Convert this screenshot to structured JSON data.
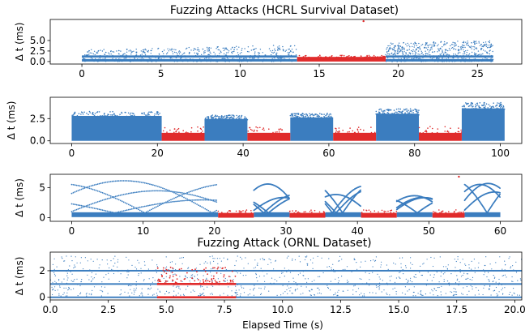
{
  "colors": {
    "normal": "#3b7dbf",
    "attack": "#e02b2b"
  },
  "chart_data": [
    {
      "type": "scatter",
      "title": "Fuzzing Attacks (HCRL Survival Dataset)",
      "xlabel": "",
      "ylabel": "Δ t (ms)",
      "xlim": [
        -2,
        27.8
      ],
      "ylim": [
        -0.6,
        10
      ],
      "xticks": [
        0,
        5,
        10,
        15,
        20,
        25
      ],
      "yticks": [
        0,
        2.5,
        5
      ],
      "attack_intervals": [
        [
          13.6,
          19.2
        ]
      ],
      "normal_profile": {
        "baseline": 0.3,
        "upper_start": 2.8,
        "upper_end": 5.0,
        "band_mid": 1.2
      },
      "attack_level": 1.0,
      "outliers": [
        {
          "x": 17.8,
          "y": 9.6
        }
      ],
      "series": [
        {
          "name": "",
          "color": "normal"
        },
        {
          "name": "",
          "color": "attack"
        }
      ]
    },
    {
      "type": "scatter",
      "title": "",
      "xlabel": "",
      "ylabel": "Δ t (ms)",
      "xlim": [
        -5,
        105
      ],
      "ylim": [
        -0.3,
        4.9
      ],
      "xticks": [
        0,
        20,
        40,
        60,
        80,
        100
      ],
      "yticks": [
        0.0,
        2.5
      ],
      "attack_intervals": [
        [
          21,
          31
        ],
        [
          41,
          51
        ],
        [
          61,
          71
        ],
        [
          81,
          91
        ]
      ],
      "normal_tops": [
        [
          0,
          21,
          3.3
        ],
        [
          31,
          41,
          2.9
        ],
        [
          51,
          61,
          3.1
        ],
        [
          71,
          81,
          3.6
        ],
        [
          91,
          101,
          4.3
        ]
      ],
      "attack_level": 0.9,
      "attack_spike": 1.6,
      "series": [
        {
          "name": "",
          "color": "normal"
        },
        {
          "name": "",
          "color": "attack"
        }
      ]
    },
    {
      "type": "scatter",
      "title": "",
      "xlabel": "",
      "ylabel": "Δ t (ms)",
      "xlim": [
        -3,
        63
      ],
      "ylim": [
        -0.6,
        7.2
      ],
      "xticks": [
        0,
        10,
        20,
        30,
        40,
        50,
        60
      ],
      "yticks": [
        0,
        5
      ],
      "attack_intervals": [
        [
          20.5,
          25.5
        ],
        [
          30.5,
          35.5
        ],
        [
          40.5,
          45.5
        ],
        [
          50.5,
          55
        ]
      ],
      "normal_intervals": [
        [
          0,
          20.5
        ],
        [
          25.5,
          30.5
        ],
        [
          35.5,
          40.5
        ],
        [
          45.5,
          50.5
        ],
        [
          55,
          60
        ]
      ],
      "attack_level": 0.8,
      "outliers": [
        {
          "x": 54.2,
          "y": 6.8
        }
      ],
      "series": [
        {
          "name": "",
          "color": "normal"
        },
        {
          "name": "",
          "color": "attack"
        }
      ]
    },
    {
      "type": "scatter",
      "title": "Fuzzing Attack (ORNL Dataset)",
      "xlabel": "Elapsed Time (s)",
      "ylabel": "Δ t (ms)",
      "xlim": [
        0,
        20.3
      ],
      "ylim": [
        -0.2,
        3.4
      ],
      "xticks": [
        0.0,
        2.5,
        5.0,
        7.5,
        10.0,
        12.5,
        15.0,
        17.5,
        20.0
      ],
      "yticks": [
        0,
        2
      ],
      "attack_intervals": [
        [
          4.6,
          8.0
        ]
      ],
      "bands": [
        0.0,
        1.0,
        2.0
      ],
      "attack_levels": [
        0.0,
        1.0
      ],
      "series": [
        {
          "name": "",
          "color": "normal"
        },
        {
          "name": "",
          "color": "attack"
        }
      ]
    }
  ]
}
